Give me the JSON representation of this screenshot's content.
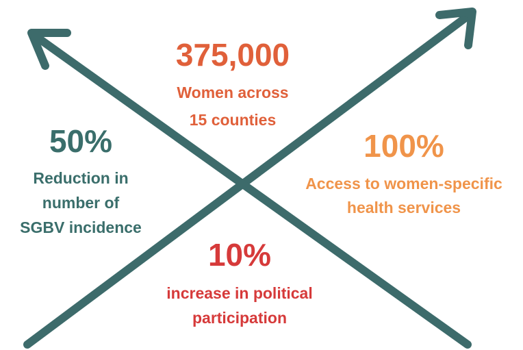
{
  "stats": [
    {
      "value": "375,000",
      "lines": [
        "Women across",
        "15 counties"
      ],
      "color": "#e0603a"
    },
    {
      "value": "50%",
      "lines": [
        "Reduction in",
        "number of",
        "SGBV incidence"
      ],
      "color": "#3a6e6b"
    },
    {
      "value": "100%",
      "lines": [
        "Access to women-specific",
        "health services"
      ],
      "color": "#f0944a"
    },
    {
      "value": "10%",
      "lines": [
        "increase in political",
        "participation"
      ],
      "color": "#d63a3a"
    }
  ]
}
